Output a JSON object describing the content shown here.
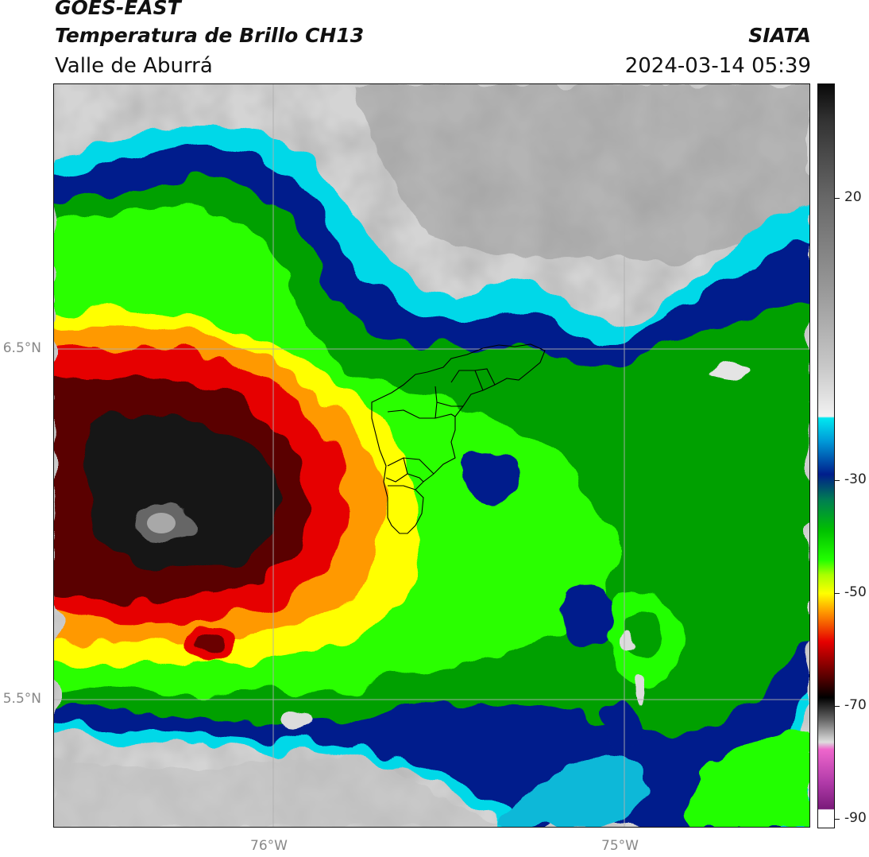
{
  "header": {
    "source": "GOES-EAST",
    "title": "Temperatura de Brillo CH13",
    "region": "Valle de Aburrá",
    "organization": "SIATA",
    "timestamp": "2024-03-14 05:39"
  },
  "map": {
    "latitude_labels": [
      "6.5°N",
      "5.5°N"
    ],
    "longitude_labels": [
      "76°W",
      "75°W"
    ]
  },
  "colorbar": {
    "tick_labels": [
      "20",
      "-30",
      "-50",
      "-70",
      "-90"
    ],
    "colors": {
      "warm_top": "#111111",
      "warm_mid_gray": "#888888",
      "light_gray": "#e6e6e6",
      "cyan": "#00d8e8",
      "dark_blue": "#001e8c",
      "green": "#00b400",
      "bright_green": "#22ff00",
      "yellow": "#ffff00",
      "orange": "#ff9900",
      "red": "#e60000",
      "dark_red": "#400000",
      "black": "#000000",
      "pink": "#ee66cc",
      "purple": "#8c1a8c"
    }
  }
}
